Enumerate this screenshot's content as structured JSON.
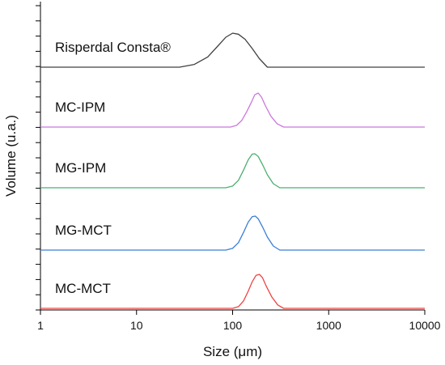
{
  "chart_data": {
    "type": "line",
    "title": "",
    "xlabel": "Size (μm)",
    "ylabel": "Volume (u.a.)",
    "x_scale": "log",
    "xlim": [
      1,
      10000
    ],
    "x_ticks": [
      1,
      10,
      100,
      1000,
      10000
    ],
    "x_tick_labels": [
      "1",
      "10",
      "100",
      "1000",
      "10000"
    ],
    "y_tick_labels_shown": false,
    "grid": false,
    "legend": "none",
    "layout": "stacked offset curves, each labeled inline",
    "series": [
      {
        "name": "Risperdal Consta®",
        "color": "#404040",
        "x": [
          1,
          28,
          40,
          55,
          70,
          85,
          100,
          115,
          135,
          160,
          190,
          230,
          10000
        ],
        "y": [
          0,
          0,
          0.08,
          0.3,
          0.62,
          0.88,
          1.0,
          0.97,
          0.82,
          0.55,
          0.25,
          0,
          0
        ]
      },
      {
        "name": "MC-IPM",
        "color": "#cc77dd",
        "x": [
          1,
          95,
          110,
          125,
          140,
          155,
          170,
          185,
          200,
          220,
          250,
          290,
          340,
          10000
        ],
        "y": [
          0,
          0,
          0.05,
          0.2,
          0.45,
          0.7,
          0.95,
          1.0,
          0.88,
          0.62,
          0.32,
          0.1,
          0,
          0
        ]
      },
      {
        "name": "MG-IPM",
        "color": "#4caf6f",
        "x": [
          1,
          85,
          100,
          115,
          130,
          145,
          160,
          170,
          185,
          205,
          230,
          265,
          310,
          10000
        ],
        "y": [
          0,
          0,
          0.05,
          0.22,
          0.52,
          0.82,
          0.99,
          1.0,
          0.92,
          0.68,
          0.38,
          0.12,
          0,
          0
        ]
      },
      {
        "name": "MG-MCT",
        "color": "#3a7fd8",
        "x": [
          1,
          85,
          100,
          115,
          130,
          145,
          160,
          172,
          185,
          205,
          230,
          265,
          310,
          10000
        ],
        "y": [
          0,
          0,
          0.05,
          0.22,
          0.52,
          0.82,
          0.98,
          1.0,
          0.92,
          0.68,
          0.38,
          0.12,
          0,
          0
        ]
      },
      {
        "name": "MC-MCT",
        "color": "#ee4444",
        "x": [
          1,
          100,
          115,
          130,
          145,
          160,
          175,
          190,
          205,
          225,
          255,
          295,
          340,
          10000
        ],
        "y": [
          0,
          0,
          0.05,
          0.22,
          0.5,
          0.78,
          0.97,
          1.0,
          0.9,
          0.64,
          0.34,
          0.1,
          0,
          0
        ]
      }
    ]
  }
}
